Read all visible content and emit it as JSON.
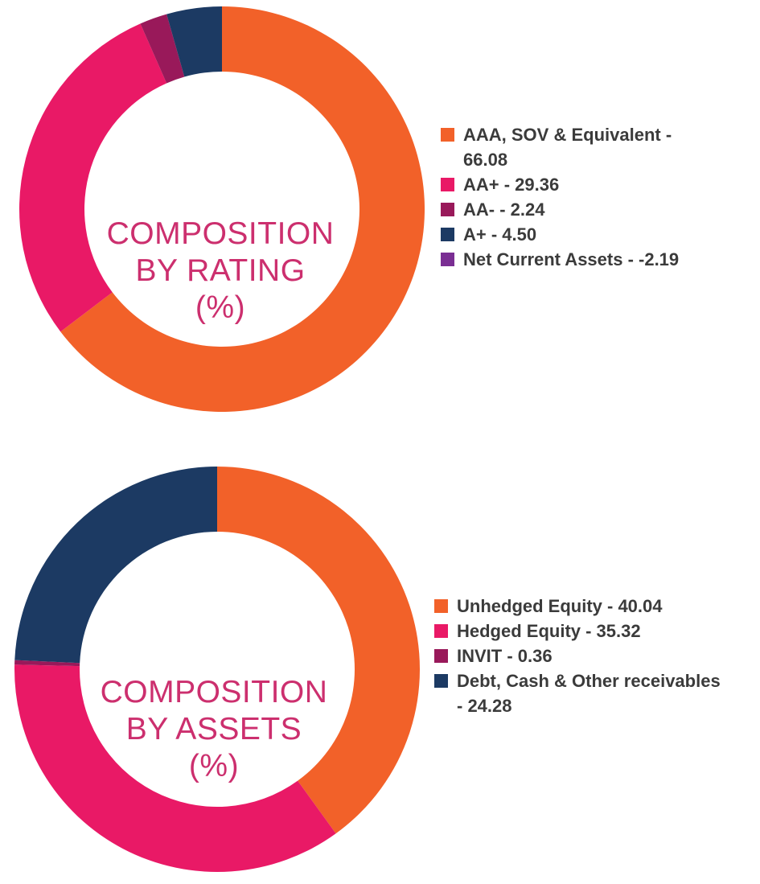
{
  "chart_data": [
    {
      "type": "pie",
      "id": "rating",
      "center_text": [
        "COMPOSITION",
        "BY RATING",
        "(%)"
      ],
      "slices": [
        {
          "label": "AAA, SOV & Equivalent",
          "value": 66.08,
          "color": "#f26129"
        },
        {
          "label": "AA+",
          "value": 29.36,
          "color": "#e91966"
        },
        {
          "label": "AA-",
          "value": 2.24,
          "color": "#99195a"
        },
        {
          "label": "A+",
          "value": 4.5,
          "color": "#1c3a63"
        },
        {
          "label": "Net Current Assets",
          "value": -2.19,
          "color": "#7a2e93"
        }
      ],
      "legend": [
        {
          "lines": [
            "AAA, SOV & Equivalent -",
            "66.08"
          ],
          "color": "#f26129"
        },
        {
          "lines": [
            "AA+ - 29.36"
          ],
          "color": "#e91966"
        },
        {
          "lines": [
            "AA- - 2.24"
          ],
          "color": "#99195a"
        },
        {
          "lines": [
            "A+ - 4.50"
          ],
          "color": "#1c3a63"
        },
        {
          "lines": [
            "Net Current Assets - -2.19"
          ],
          "color": "#7a2e93"
        }
      ]
    },
    {
      "type": "pie",
      "id": "assets",
      "center_text": [
        "COMPOSITION",
        "BY ASSETS",
        "(%)"
      ],
      "slices": [
        {
          "label": "Unhedged Equity",
          "value": 40.04,
          "color": "#f26129"
        },
        {
          "label": "Hedged Equity",
          "value": 35.32,
          "color": "#e91966"
        },
        {
          "label": "INVIT",
          "value": 0.36,
          "color": "#99195a"
        },
        {
          "label": "Debt, Cash & Other receivables",
          "value": 24.28,
          "color": "#1c3a63"
        }
      ],
      "legend": [
        {
          "lines": [
            "Unhedged Equity - 40.04"
          ],
          "color": "#f26129"
        },
        {
          "lines": [
            "Hedged Equity - 35.32"
          ],
          "color": "#e91966"
        },
        {
          "lines": [
            "INVIT - 0.36"
          ],
          "color": "#99195a"
        },
        {
          "lines": [
            "Debt, Cash & Other receivables",
            "- 24.28"
          ],
          "color": "#1c3a63"
        }
      ]
    }
  ]
}
